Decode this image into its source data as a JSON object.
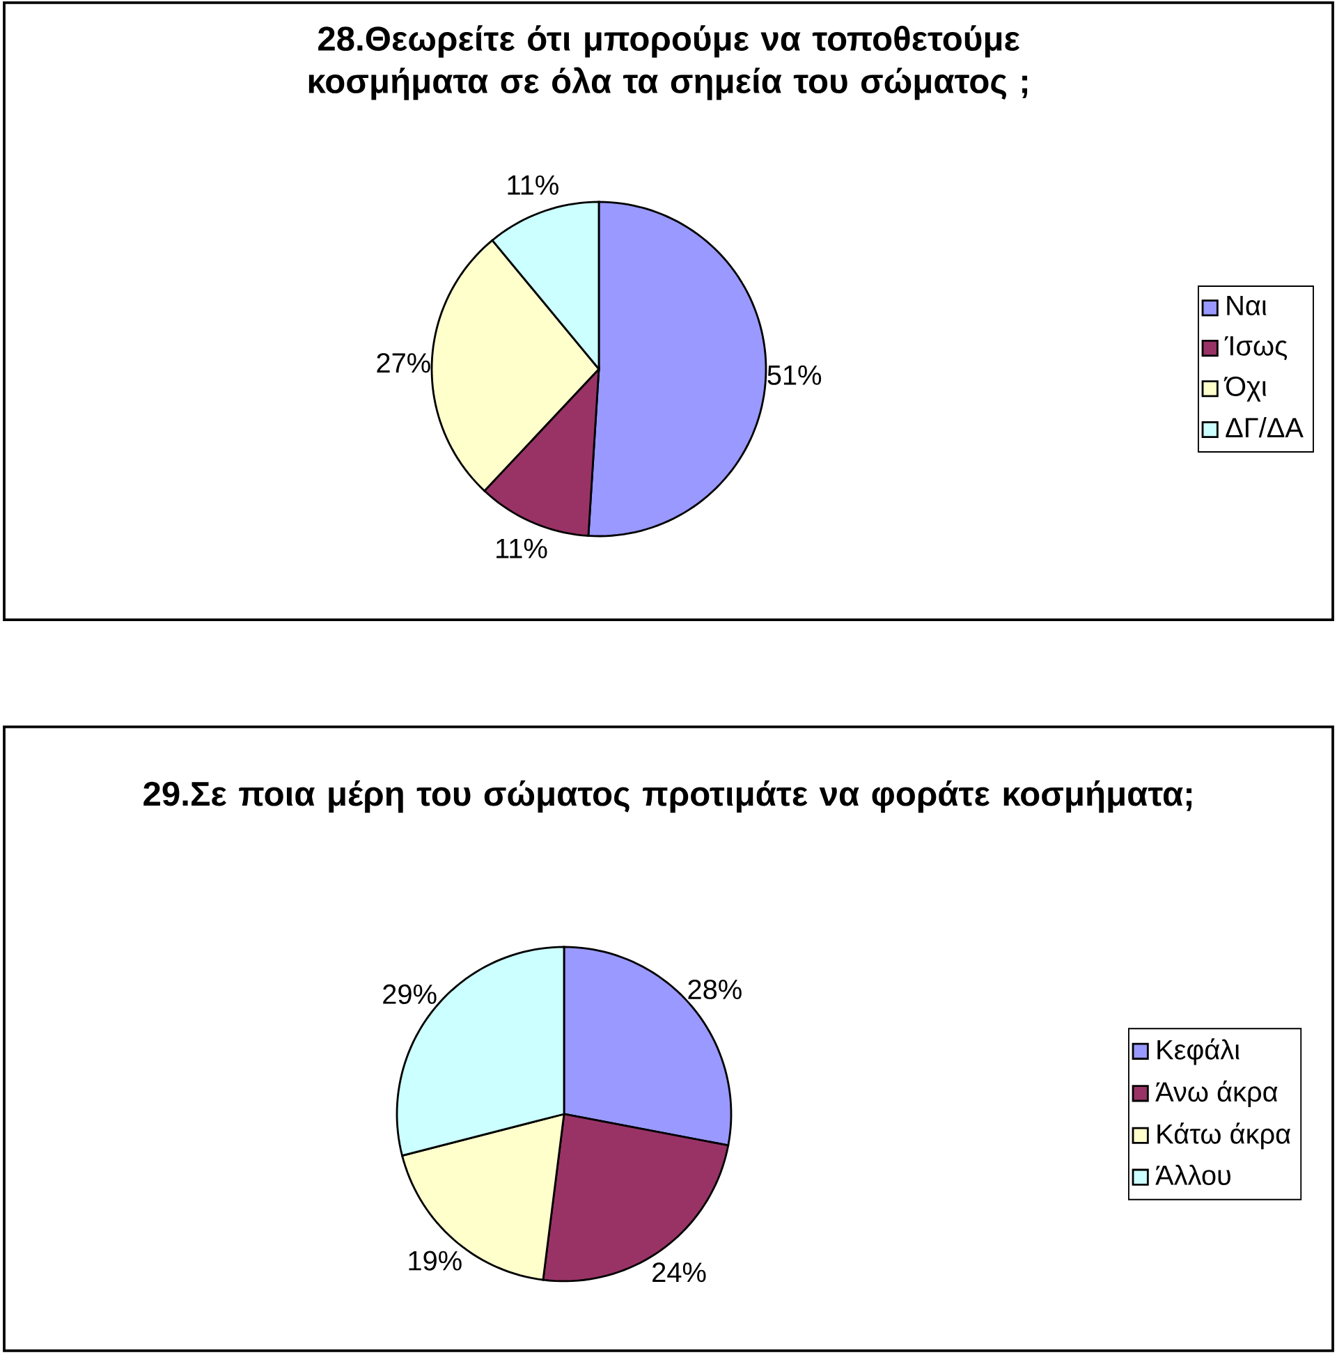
{
  "chart_data": [
    {
      "type": "pie",
      "title": "28.Θεωρείτε ότι μπορούμε να τοποθετούμε κοσμήματα σε όλα τα σημεία του σώματος ;",
      "categories": [
        "Ναι",
        "Ίσως",
        "Όχι",
        "ΔΓ/ΔΑ"
      ],
      "values": [
        51,
        11,
        27,
        11
      ],
      "colors": [
        "#9999ff",
        "#993366",
        "#ffffcc",
        "#ccffff"
      ],
      "value_labels": [
        "51%",
        "11%",
        "27%",
        "11%"
      ],
      "legend": "right"
    },
    {
      "type": "pie",
      "title": "29.Σε ποια μέρη του σώματος προτιμάτε να φοράτε κοσμήματα;",
      "categories": [
        "Κεφάλι",
        "Άνω άκρα",
        "Κάτω άκρα",
        "Άλλου"
      ],
      "values": [
        28,
        24,
        19,
        29
      ],
      "colors": [
        "#9999ff",
        "#993366",
        "#ffffcc",
        "#ccffff"
      ],
      "value_labels": [
        "28%",
        "24%",
        "19%",
        "29%"
      ],
      "legend": "right"
    }
  ]
}
